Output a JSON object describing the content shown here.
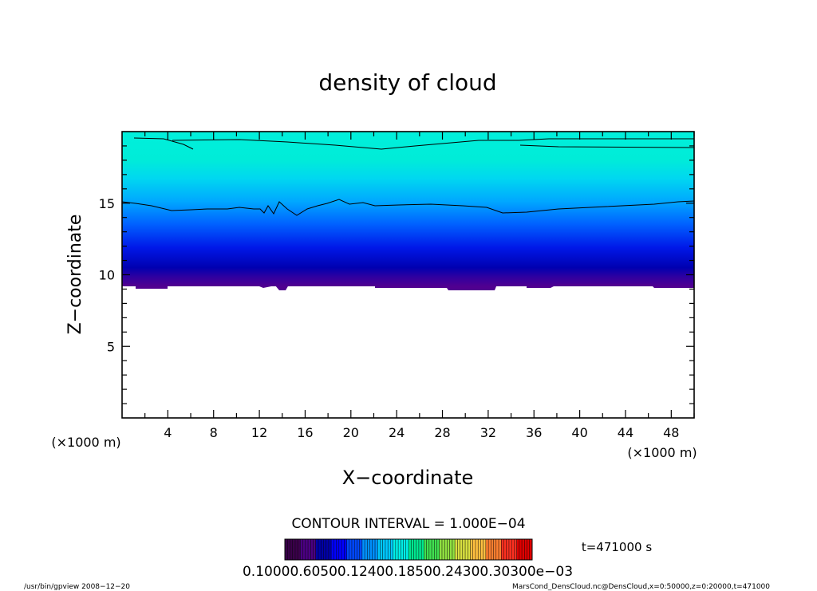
{
  "chart_data": {
    "type": "heatmap",
    "title": "density of cloud",
    "xlabel": "X−coordinate",
    "ylabel": "Z−coordinate",
    "x_unit": "(×1000 m)",
    "y_unit": "(×1000 m)",
    "xlim": [
      0,
      50
    ],
    "ylim": [
      0,
      20
    ],
    "x_ticks": [
      4,
      8,
      12,
      16,
      20,
      24,
      28,
      32,
      36,
      40,
      44,
      48
    ],
    "y_ticks": [
      5,
      10,
      15
    ],
    "contour_interval_label": "CONTOUR INTERVAL = 1.000E−04",
    "time_label": "t=471000 s",
    "colorbar_labels": "0.10000.60500.12400.18500.24300.30300e−03",
    "colorbar_colors": [
      "#3a004a",
      "#4b0082",
      "#0000a8",
      "#0000ff",
      "#0048ff",
      "#0090ff",
      "#00c8ff",
      "#00f0e8",
      "#00e890",
      "#40e050",
      "#90e040",
      "#d8e040",
      "#ffc040",
      "#ff8030",
      "#ff3020",
      "#e00000"
    ],
    "contour_levels_z_km": [
      19.3,
      14.9
    ],
    "cloud_base_z_km": 9.2
  },
  "footer": {
    "left": "/usr/bin/gpview   2008−12−20",
    "right": "MarsCond_DensCloud.nc@DensCloud,x=0:50000,z=0:20000,t=471000"
  }
}
